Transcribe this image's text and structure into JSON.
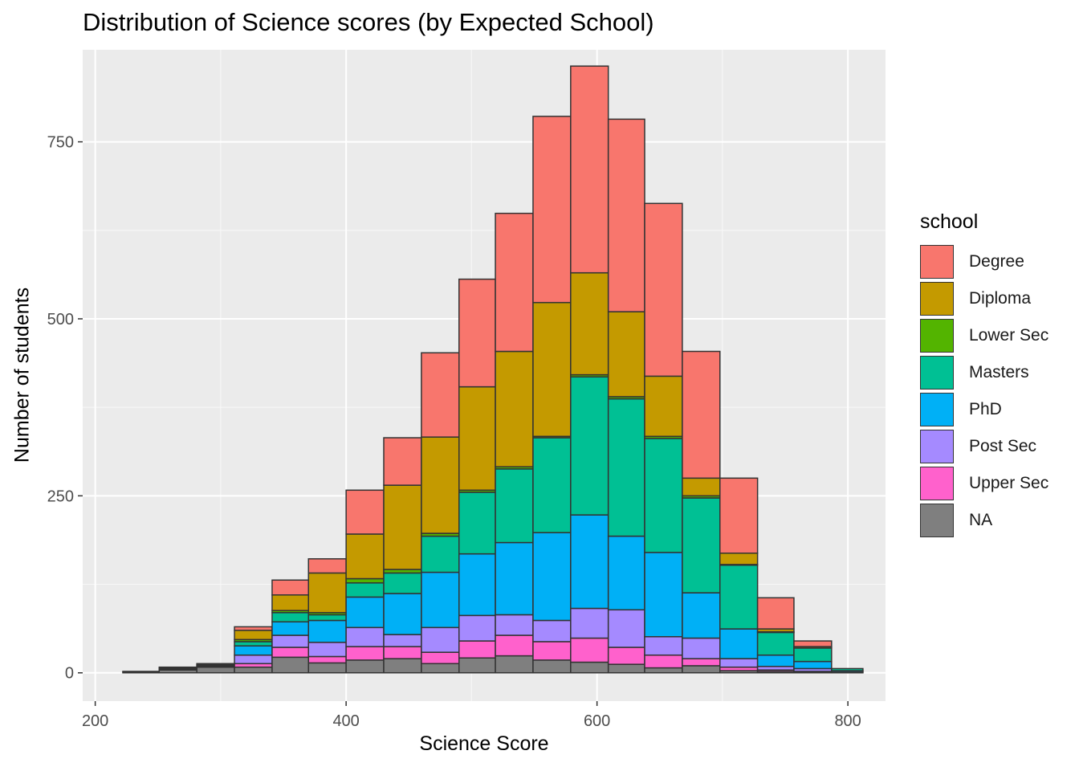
{
  "chart_data": {
    "type": "bar",
    "stacked": true,
    "histogram": true,
    "title": "Distribution of Science scores (by Expected School)",
    "xlabel": "Science Score",
    "ylabel": "Number of students",
    "xlim": [
      190,
      830
    ],
    "ylim": [
      -40,
      880
    ],
    "xticks": [
      200,
      400,
      600,
      800
    ],
    "xtick_labels": [
      "200",
      "400",
      "600",
      "800"
    ],
    "yticks": [
      0,
      250,
      500,
      750
    ],
    "ytick_labels": [
      "0",
      "250",
      "500",
      "750"
    ],
    "grid": true,
    "legend_title": "school",
    "legend_position": "right",
    "bin_edges": [
      222,
      251,
      281,
      311,
      341,
      370,
      400,
      430,
      460,
      490,
      519,
      549,
      579,
      609,
      638,
      668,
      698,
      728,
      757,
      787,
      812
    ],
    "series": [
      {
        "name": "NA",
        "color": "#7F7F7F",
        "values": [
          1,
          4,
          8,
          8,
          22,
          14,
          18,
          20,
          13,
          21,
          24,
          18,
          15,
          12,
          7,
          10,
          3,
          2,
          1,
          1
        ]
      },
      {
        "name": "Upper Sec",
        "color": "#FF61CC",
        "values": [
          0,
          1,
          1,
          5,
          14,
          9,
          19,
          17,
          16,
          24,
          29,
          26,
          34,
          24,
          18,
          10,
          5,
          2,
          1,
          0
        ]
      },
      {
        "name": "Post Sec",
        "color": "#A58AFF",
        "values": [
          0,
          1,
          1,
          12,
          17,
          20,
          27,
          17,
          35,
          36,
          29,
          30,
          42,
          53,
          26,
          29,
          12,
          5,
          4,
          0
        ]
      },
      {
        "name": "PhD",
        "color": "#00B0F6",
        "values": [
          0,
          0,
          1,
          13,
          19,
          31,
          43,
          58,
          78,
          87,
          102,
          124,
          132,
          104,
          119,
          64,
          42,
          16,
          10,
          2
        ]
      },
      {
        "name": "Masters",
        "color": "#00C094",
        "values": [
          0,
          0,
          0,
          6,
          13,
          8,
          20,
          29,
          51,
          87,
          104,
          134,
          195,
          194,
          161,
          134,
          90,
          32,
          19,
          3
        ]
      },
      {
        "name": "Lower Sec",
        "color": "#53B400",
        "values": [
          0,
          0,
          0,
          3,
          3,
          3,
          6,
          5,
          4,
          3,
          3,
          2,
          3,
          3,
          3,
          3,
          1,
          1,
          0,
          0
        ]
      },
      {
        "name": "Diploma",
        "color": "#C49A00",
        "values": [
          0,
          1,
          1,
          13,
          22,
          56,
          63,
          119,
          136,
          146,
          163,
          189,
          144,
          120,
          85,
          25,
          16,
          4,
          2,
          0
        ]
      },
      {
        "name": "Degree",
        "color": "#F8766D",
        "values": [
          1,
          1,
          1,
          5,
          21,
          20,
          62,
          67,
          119,
          152,
          195,
          263,
          292,
          272,
          244,
          179,
          106,
          44,
          8,
          0
        ]
      }
    ],
    "legend_order": [
      "Degree",
      "Diploma",
      "Lower Sec",
      "Masters",
      "PhD",
      "Post Sec",
      "Upper Sec",
      "NA"
    ]
  }
}
